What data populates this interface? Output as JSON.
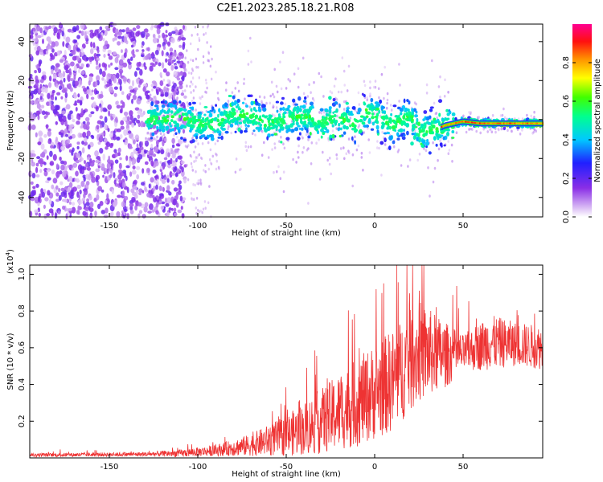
{
  "title": "C2E1.2023.285.18.21.R08",
  "chart_data": [
    {
      "type": "heatmap",
      "xlabel": "Height of straight line (km)",
      "ylabel": "Frequency (Hz)",
      "xlim": [
        -195,
        95
      ],
      "ylim": [
        -50,
        49
      ],
      "xticks": [
        -150,
        -100,
        -50,
        0,
        50
      ],
      "yticks": [
        -40,
        -20,
        0,
        20,
        40
      ],
      "ridge": [
        {
          "x": -125,
          "y": 0
        },
        {
          "x": -110,
          "y": 1
        },
        {
          "x": -100,
          "y": -2
        },
        {
          "x": -90,
          "y": -3
        },
        {
          "x": -80,
          "y": 3
        },
        {
          "x": -70,
          "y": 2
        },
        {
          "x": -60,
          "y": -2
        },
        {
          "x": -50,
          "y": 0
        },
        {
          "x": -40,
          "y": 2
        },
        {
          "x": -30,
          "y": -1
        },
        {
          "x": -20,
          "y": 1
        },
        {
          "x": -10,
          "y": -3
        },
        {
          "x": -5,
          "y": 5
        },
        {
          "x": 0,
          "y": 2
        },
        {
          "x": 10,
          "y": -3
        },
        {
          "x": 20,
          "y": 2
        },
        {
          "x": 25,
          "y": -6
        },
        {
          "x": 35,
          "y": -5
        },
        {
          "x": 40,
          "y": -3
        },
        {
          "x": 45,
          "y": -2
        },
        {
          "x": 50,
          "y": -1
        },
        {
          "x": 60,
          "y": -2
        },
        {
          "x": 70,
          "y": -2
        },
        {
          "x": 80,
          "y": -2
        },
        {
          "x": 95,
          "y": -2
        }
      ],
      "colorbar": {
        "label": "Normalized spectral amplitude",
        "range": [
          0,
          1
        ],
        "ticks": [
          0.0,
          0.2,
          0.4,
          0.6,
          0.8
        ],
        "tick_labels": [
          "0.0",
          "0.2",
          "0.4",
          "0.6",
          "0.8"
        ]
      }
    },
    {
      "type": "line",
      "xlabel": "Height of straight line (km)",
      "ylabel": "SNR (10 * v/v)",
      "multiplier": "(x10",
      "multiplier_exp": "4",
      "multiplier_close": ")",
      "xlim": [
        -195,
        95
      ],
      "ylim": [
        0,
        1.05
      ],
      "xticks": [
        -150,
        -100,
        -50,
        0,
        50
      ],
      "yticks": [
        0.2,
        0.4,
        0.6,
        0.8,
        1.0
      ],
      "ytick_labels": [
        "0.2",
        "0.4",
        "0.6",
        "0.8",
        "1.0"
      ],
      "color": "#ee3333",
      "envelope": [
        {
          "x": -195,
          "base": 0.015,
          "amp": 0.01
        },
        {
          "x": -130,
          "base": 0.02,
          "amp": 0.012
        },
        {
          "x": -110,
          "base": 0.025,
          "amp": 0.02
        },
        {
          "x": -90,
          "base": 0.04,
          "amp": 0.03
        },
        {
          "x": -70,
          "base": 0.07,
          "amp": 0.06
        },
        {
          "x": -50,
          "base": 0.12,
          "amp": 0.11
        },
        {
          "x": -30,
          "base": 0.2,
          "amp": 0.18
        },
        {
          "x": -10,
          "base": 0.3,
          "amp": 0.24
        },
        {
          "x": 10,
          "base": 0.42,
          "amp": 0.28
        },
        {
          "x": 25,
          "base": 0.58,
          "amp": 0.28
        },
        {
          "x": 40,
          "base": 0.56,
          "amp": 0.18
        },
        {
          "x": 50,
          "base": 0.57,
          "amp": 0.1
        },
        {
          "x": 65,
          "base": 0.63,
          "amp": 0.15
        },
        {
          "x": 80,
          "base": 0.62,
          "amp": 0.12
        },
        {
          "x": 95,
          "base": 0.6,
          "amp": 0.12
        }
      ]
    }
  ]
}
